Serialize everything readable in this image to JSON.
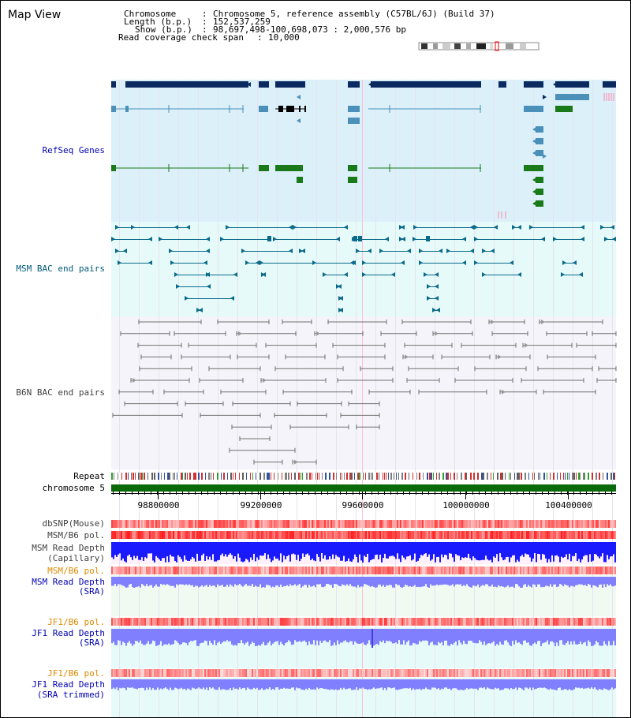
{
  "view": {
    "title": "Map View"
  },
  "info": {
    "chromosome_label": "Chromosome",
    "chromosome_value": "Chromosome 5, reference assembly (C57BL/6J) (Build 37)",
    "length_label": "Length (b.p.)",
    "length_value": "152,537,259",
    "show_label": "Show (b.p.)",
    "show_value": "98,697,498-100,698,073 : 2,000,576 bp",
    "coverage_label": "Read coverage check span",
    "coverage_value": "10,000"
  },
  "tracks": {
    "refseq": "RefSeq Genes",
    "msm_bac": "MSM BAC end pairs",
    "b6n_bac": "B6N BAC end pairs",
    "repeat": "Repeat",
    "chromosome": "chromosome 5",
    "dbsnp": "dbSNP(Mouse)",
    "msm_b6_pol": "MSM/B6 pol.",
    "msm_depth_cap_1": "MSM Read Depth",
    "msm_depth_cap_2": "(Capillary)",
    "msm_b6_pol_sra": "MSM/B6 pol.",
    "msm_depth_sra_1": "MSM Read Depth",
    "msm_depth_sra_2": "(SRA)",
    "jf1_pol": "JF1/B6 pol.",
    "jf1_depth_1": "JF1 Read Depth",
    "jf1_depth_2": "(SRA)",
    "jf1_pol_trim": "JF1/B6 pol.",
    "jf1_trim_1": "JF1 Read Depth",
    "jf1_trim_2": "(SRA trimmed)"
  },
  "axis": {
    "ticks": [
      "98800000",
      "99200000",
      "99600000",
      "100000000",
      "100400000"
    ]
  },
  "colors": {
    "refseq_bg": "#dcf0fa",
    "msm_bg": "#e6fafa",
    "b6n_bg": "#f4f4fa",
    "gene_navy": "#0a2a60",
    "gene_steel": "#4a90b8",
    "gene_green": "#1a7a1a",
    "depth_blue": "#1a1aff",
    "depth_light": "#8080ff",
    "chrom_green": "#0a6a0a",
    "pol_red": "#ff3030",
    "pol_pink": "#ffb0b0",
    "label_blue": "#0000b0",
    "label_orange": "#e08a00"
  }
}
